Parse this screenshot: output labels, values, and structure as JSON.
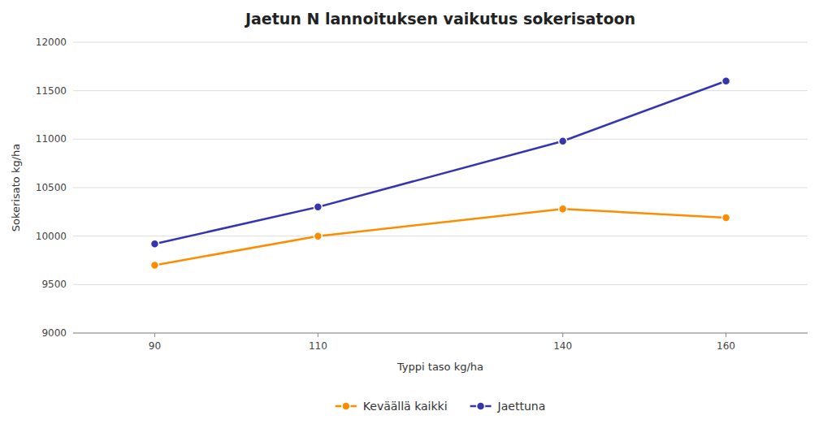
{
  "chart_data": {
    "type": "line",
    "title": "Jaetun N lannoituksen vaikutus sokerisatoon",
    "xlabel": "Typpi taso kg/ha",
    "ylabel": "Sokerisato kg/ha",
    "x": [
      90,
      110,
      140,
      160
    ],
    "series": [
      {
        "name": "Keväällä kaikki",
        "color": "#FF8C00",
        "marker": "circle",
        "values": [
          9700,
          10000,
          10280,
          10190
        ]
      },
      {
        "name": "Jaettuna",
        "color": "#3535b0",
        "marker": "circle",
        "values": [
          9920,
          10300,
          10980,
          11600
        ]
      }
    ],
    "xlim": [
      80,
      170
    ],
    "xticks": [
      90,
      110,
      140,
      160
    ],
    "ylim": [
      9000,
      12000
    ],
    "yticks": [
      9000,
      9500,
      10000,
      10500,
      11000,
      11500,
      12000
    ],
    "grid": true,
    "legend": "bottom"
  }
}
